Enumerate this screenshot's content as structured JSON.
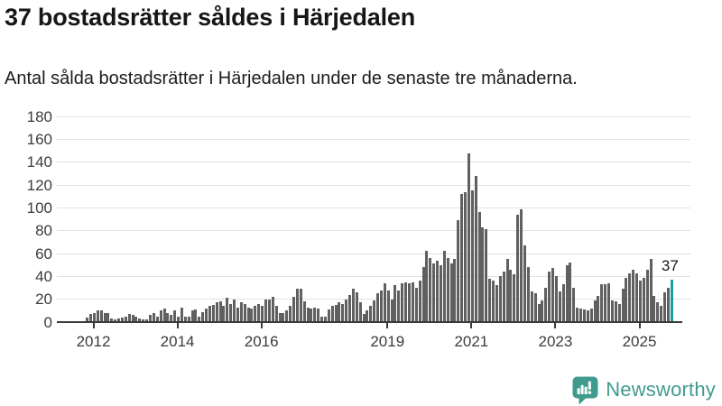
{
  "header": {
    "title": "37 bostadsrätter såldes i Härjedalen",
    "subtitle": "Antal sålda bostadsrätter i Härjedalen under de senaste tre månaderna."
  },
  "chart_data": {
    "type": "bar",
    "title": "37 bostadsrätter såldes i Härjedalen",
    "subtitle": "Antal sålda bostadsrätter i Härjedalen under de senaste tre månaderna.",
    "x_axis": {
      "granularity": "monthly",
      "first_bar_month": "2011-11",
      "last_bar_month": "2025-10",
      "tick_labels": [
        "2012",
        "2014",
        "2016",
        "2019",
        "2021",
        "2023",
        "2025"
      ],
      "tick_years": [
        2012,
        2014,
        2016,
        2019,
        2021,
        2023,
        2025
      ]
    },
    "y_axis": {
      "ticks": [
        0,
        20,
        40,
        60,
        80,
        100,
        120,
        140,
        160,
        180
      ],
      "lim": [
        0,
        180
      ],
      "gridlines": true
    },
    "values": [
      4,
      7,
      8,
      10,
      10,
      8,
      8,
      3,
      2,
      3,
      4,
      5,
      7,
      6,
      5,
      3,
      2,
      2,
      6,
      8,
      5,
      10,
      12,
      8,
      6,
      10,
      5,
      13,
      5,
      5,
      10,
      11,
      5,
      9,
      12,
      14,
      15,
      17,
      18,
      14,
      21,
      16,
      20,
      13,
      17,
      16,
      13,
      12,
      14,
      16,
      14,
      20,
      20,
      22,
      14,
      8,
      8,
      10,
      14,
      22,
      29,
      29,
      18,
      13,
      12,
      13,
      12,
      5,
      5,
      11,
      14,
      15,
      17,
      16,
      20,
      24,
      29,
      26,
      17,
      7,
      10,
      14,
      19,
      25,
      28,
      34,
      28,
      20,
      32,
      28,
      34,
      35,
      34,
      35,
      30,
      36,
      48,
      62,
      56,
      51,
      54,
      50,
      62,
      56,
      51,
      55,
      89,
      112,
      114,
      148,
      115,
      128,
      96,
      83,
      81,
      38,
      36,
      32,
      40,
      44,
      55,
      46,
      42,
      94,
      99,
      67,
      48,
      27,
      25,
      16,
      19,
      30,
      44,
      47,
      40,
      27,
      33,
      50,
      52,
      30,
      13,
      12,
      11,
      10,
      12,
      19,
      23,
      33,
      33,
      34,
      19,
      18,
      16,
      29,
      39,
      43,
      46,
      43,
      36,
      39,
      46,
      55,
      23,
      17,
      14,
      26,
      30,
      37
    ],
    "highlight_last": {
      "value": 37,
      "label": "37"
    },
    "colors": {
      "bar": "#606060",
      "highlight": "#14a0a0",
      "gridline": "#e1e1e1",
      "axis": "#3a3a3a",
      "label_text": "#161616"
    },
    "legend": "none"
  },
  "branding": {
    "logo_text": "Newsworthy",
    "logo_color": "#3f9b8d",
    "logo_icon": "newsworthy-speech-bubble-bar-chart-icon"
  }
}
